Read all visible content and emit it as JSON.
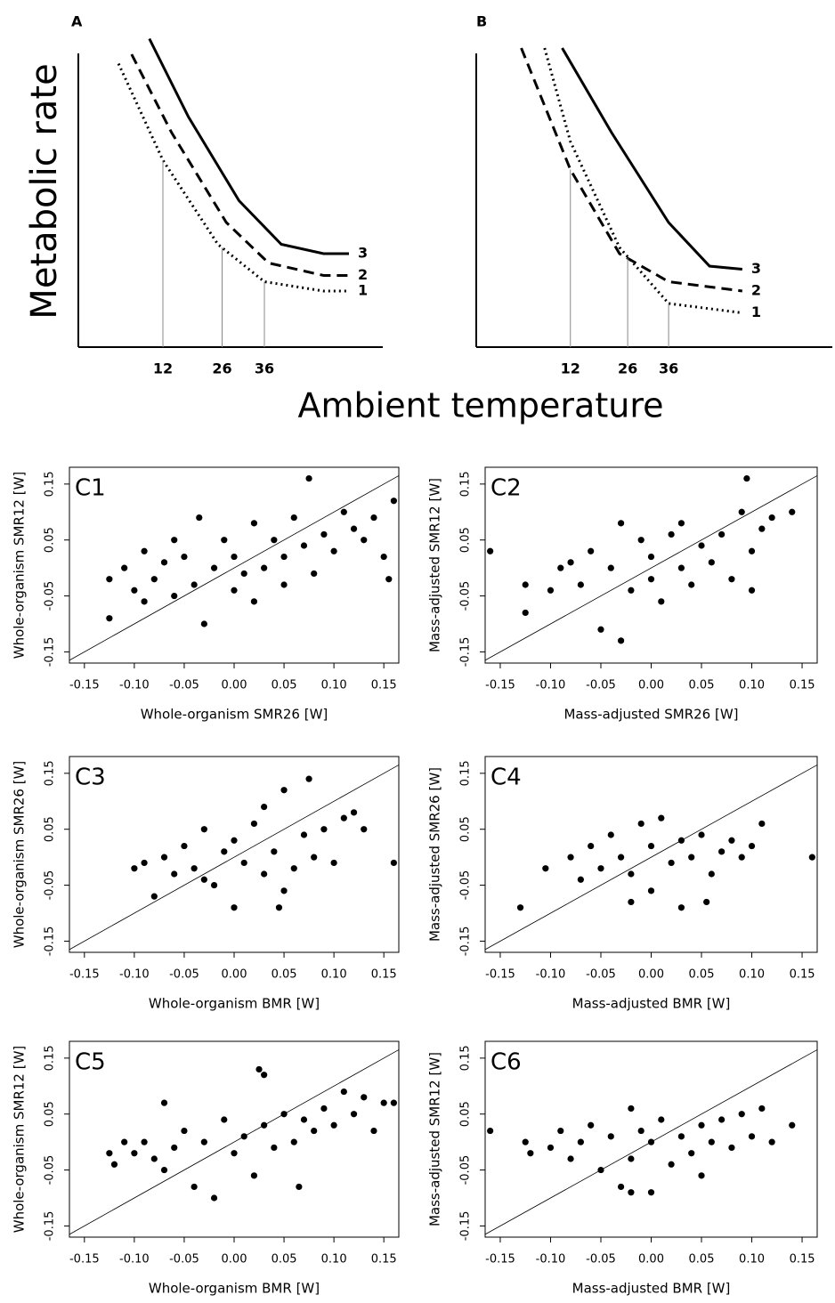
{
  "figure": {
    "ylabel": "Metabolic rate",
    "xlabel": "Ambient temperature"
  },
  "chart_data": [
    {
      "type": "line",
      "title": "A",
      "xlim": [
        -8,
        64
      ],
      "ylim": [
        0,
        100
      ],
      "xticks": [
        12,
        26,
        36
      ],
      "guides": true,
      "series": [
        {
          "name": "1",
          "color": "#000000",
          "dash": "dotted",
          "x": [
            1.5,
            12,
            25,
            36,
            50,
            56
          ],
          "values": [
            91,
            60,
            33,
            21,
            18,
            18
          ]
        },
        {
          "name": "2",
          "color": "#000000",
          "dash": "dashed",
          "x": [
            4.6,
            14,
            27,
            37,
            50,
            56
          ],
          "values": [
            94,
            69,
            40,
            27,
            23,
            23
          ]
        },
        {
          "name": "3",
          "color": "#000000",
          "dash": "solid",
          "x": [
            8.8,
            18,
            30,
            40,
            50,
            56
          ],
          "values": [
            99,
            74,
            47,
            33,
            30,
            30
          ]
        }
      ]
    },
    {
      "type": "line",
      "title": "B",
      "xlim": [
        -11,
        76
      ],
      "ylim": [
        0,
        100
      ],
      "xticks": [
        12,
        26,
        36
      ],
      "guides": true,
      "series": [
        {
          "name": "1",
          "color": "#000000",
          "dash": "dotted",
          "x": [
            5.7,
            12,
            24,
            36,
            54
          ],
          "values": [
            96,
            66,
            32,
            14,
            11
          ]
        },
        {
          "name": "2",
          "color": "#000000",
          "dash": "dashed",
          "x": [
            0,
            12,
            24,
            36,
            54
          ],
          "values": [
            96,
            57,
            30,
            21,
            18
          ]
        },
        {
          "name": "3",
          "color": "#000000",
          "dash": "solid",
          "x": [
            10,
            22,
            36,
            46,
            54
          ],
          "values": [
            96,
            69,
            40,
            26,
            25
          ]
        }
      ]
    },
    {
      "type": "scatter",
      "title": "C1",
      "xlabel": "Whole-organism SMR26 [W]",
      "ylabel": "Whole-organism SMR12 [W]",
      "color": "#000000",
      "identity_line": true,
      "xlim": [
        -0.165,
        0.165
      ],
      "ylim": [
        -0.17,
        0.18
      ],
      "xticks": [
        -0.15,
        {
          "value": -0.1,
          "label": "-0.10"
        },
        -0.05,
        {
          "value": 0,
          "label": "0.00"
        },
        0.05,
        {
          "value": 0.1,
          "label": "0.10"
        },
        0.15
      ],
      "yticks": [
        -0.15,
        -0.05,
        0.05,
        0.15
      ],
      "x": [
        -0.125,
        -0.125,
        -0.11,
        -0.1,
        -0.09,
        -0.08,
        -0.07,
        -0.06,
        -0.05,
        -0.04,
        -0.035,
        -0.03,
        -0.02,
        -0.01,
        0,
        0,
        0.01,
        0.02,
        0.03,
        0.04,
        0.05,
        0.05,
        0.06,
        0.07,
        0.075,
        0.08,
        0.09,
        0.1,
        0.11,
        0.12,
        0.13,
        0.14,
        0.15,
        0.16,
        0.155,
        -0.06,
        0.02,
        -0.09
      ],
      "values": [
        -0.09,
        -0.02,
        0,
        -0.04,
        -0.06,
        -0.02,
        0.01,
        -0.05,
        0.02,
        -0.03,
        0.09,
        -0.1,
        0,
        0.05,
        -0.04,
        0.02,
        -0.01,
        0.08,
        0,
        0.05,
        -0.03,
        0.02,
        0.09,
        0.04,
        0.16,
        -0.01,
        0.06,
        0.03,
        0.1,
        0.07,
        0.05,
        0.09,
        0.02,
        0.12,
        -0.02,
        0.05,
        -0.06,
        0.03
      ]
    },
    {
      "type": "scatter",
      "title": "C2",
      "xlabel": "Mass-adjusted SMR26 [W]",
      "ylabel": "Mass-adjusted SMR12 [W]",
      "color": "#000000",
      "identity_line": true,
      "xlim": [
        -0.165,
        0.165
      ],
      "ylim": [
        -0.17,
        0.18
      ],
      "xticks": [
        -0.15,
        {
          "value": -0.1,
          "label": "-0.10"
        },
        -0.05,
        {
          "value": 0,
          "label": "0.00"
        },
        0.05,
        {
          "value": 0.1,
          "label": "0.10"
        },
        0.15
      ],
      "yticks": [
        -0.15,
        -0.05,
        0.05,
        0.15
      ],
      "x": [
        -0.16,
        -0.125,
        -0.125,
        -0.1,
        -0.09,
        -0.07,
        -0.06,
        -0.05,
        -0.04,
        -0.03,
        -0.03,
        -0.02,
        -0.01,
        0,
        0,
        0.01,
        0.02,
        0.03,
        0.04,
        0.05,
        0.06,
        0.07,
        0.08,
        0.09,
        0.095,
        0.1,
        0.11,
        0.12,
        0.14,
        0.1,
        -0.08,
        0.03
      ],
      "values": [
        0.03,
        -0.03,
        -0.08,
        -0.04,
        0,
        -0.03,
        0.03,
        -0.11,
        0,
        -0.13,
        0.08,
        -0.04,
        0.05,
        -0.02,
        0.02,
        -0.06,
        0.06,
        0,
        -0.03,
        0.04,
        0.01,
        0.06,
        -0.02,
        0.1,
        0.16,
        0.03,
        0.07,
        0.09,
        0.1,
        -0.04,
        0.01,
        0.08
      ]
    },
    {
      "type": "scatter",
      "title": "C3",
      "xlabel": "Whole-organism BMR [W]",
      "ylabel": "Whole-organism SMR26 [W]",
      "color": "#000000",
      "identity_line": true,
      "xlim": [
        -0.165,
        0.165
      ],
      "ylim": [
        -0.17,
        0.18
      ],
      "xticks": [
        -0.15,
        {
          "value": -0.1,
          "label": "-0.10"
        },
        -0.05,
        {
          "value": 0,
          "label": "0.00"
        },
        0.05,
        {
          "value": 0.1,
          "label": "0.10"
        },
        0.15
      ],
      "yticks": [
        -0.15,
        -0.05,
        0.05,
        0.15
      ],
      "x": [
        -0.1,
        -0.09,
        -0.08,
        -0.07,
        -0.06,
        -0.05,
        -0.04,
        -0.03,
        -0.02,
        -0.01,
        0,
        0,
        0.01,
        0.02,
        0.03,
        0.03,
        0.04,
        0.05,
        0.05,
        0.06,
        0.07,
        0.075,
        0.08,
        0.09,
        0.1,
        0.11,
        0.12,
        0.13,
        0.16,
        -0.03,
        0.045
      ],
      "values": [
        -0.02,
        -0.01,
        -0.07,
        0,
        -0.03,
        0.02,
        -0.02,
        0.05,
        -0.05,
        0.01,
        -0.09,
        0.03,
        -0.01,
        0.06,
        0.09,
        -0.03,
        0.01,
        0.12,
        -0.06,
        -0.02,
        0.04,
        0.14,
        0,
        0.05,
        -0.01,
        0.07,
        0.08,
        0.05,
        -0.01,
        -0.04,
        -0.09
      ]
    },
    {
      "type": "scatter",
      "title": "C4",
      "xlabel": "Mass-adjusted BMR [W]",
      "ylabel": "Mass-adjusted SMR26 [W]",
      "color": "#000000",
      "identity_line": true,
      "xlim": [
        -0.165,
        0.165
      ],
      "ylim": [
        -0.17,
        0.18
      ],
      "xticks": [
        -0.15,
        {
          "value": -0.1,
          "label": "-0.10"
        },
        -0.05,
        {
          "value": 0,
          "label": "0.00"
        },
        0.05,
        {
          "value": 0.1,
          "label": "0.10"
        },
        0.15
      ],
      "yticks": [
        -0.15,
        -0.05,
        0.05,
        0.15
      ],
      "x": [
        -0.13,
        -0.105,
        -0.08,
        -0.07,
        -0.06,
        -0.05,
        -0.04,
        -0.03,
        -0.02,
        -0.01,
        0,
        0,
        0.01,
        0.02,
        0.03,
        0.03,
        0.04,
        0.05,
        0.06,
        0.07,
        0.08,
        0.09,
        0.1,
        0.11,
        0.16,
        -0.02,
        0.055
      ],
      "values": [
        -0.09,
        -0.02,
        0,
        -0.04,
        0.02,
        -0.02,
        0.04,
        0,
        -0.03,
        0.06,
        0.02,
        -0.06,
        0.07,
        -0.01,
        0.03,
        -0.09,
        0,
        0.04,
        -0.03,
        0.01,
        0.03,
        0,
        0.02,
        0.06,
        0,
        -0.08,
        -0.08
      ]
    },
    {
      "type": "scatter",
      "title": "C5",
      "xlabel": "Whole-organism BMR [W]",
      "ylabel": "Whole-organism SMR12 [W]",
      "color": "#000000",
      "identity_line": true,
      "xlim": [
        -0.165,
        0.165
      ],
      "ylim": [
        -0.17,
        0.18
      ],
      "xticks": [
        -0.15,
        {
          "value": -0.1,
          "label": "-0.10"
        },
        -0.05,
        {
          "value": 0,
          "label": "0.00"
        },
        0.05,
        {
          "value": 0.1,
          "label": "0.10"
        },
        0.15
      ],
      "yticks": [
        -0.15,
        -0.05,
        0.05,
        0.15
      ],
      "x": [
        -0.125,
        -0.12,
        -0.11,
        -0.1,
        -0.09,
        -0.08,
        -0.07,
        -0.06,
        -0.05,
        -0.04,
        -0.03,
        -0.02,
        -0.01,
        0,
        0.01,
        0.02,
        0.025,
        0.03,
        0.03,
        0.04,
        0.05,
        0.06,
        0.065,
        0.07,
        0.08,
        0.09,
        0.1,
        0.11,
        0.12,
        0.13,
        0.14,
        0.15,
        0.16,
        -0.07
      ],
      "values": [
        -0.02,
        -0.04,
        0,
        -0.02,
        0,
        -0.03,
        0.07,
        -0.01,
        0.02,
        -0.08,
        0,
        -0.1,
        0.04,
        -0.02,
        0.01,
        -0.06,
        0.13,
        0.12,
        0.03,
        -0.01,
        0.05,
        0,
        -0.08,
        0.04,
        0.02,
        0.06,
        0.03,
        0.09,
        0.05,
        0.08,
        0.02,
        0.07,
        0.07,
        -0.05
      ]
    },
    {
      "type": "scatter",
      "title": "C6",
      "xlabel": "Mass-adjusted BMR [W]",
      "ylabel": "Mass-adjusted SMR12 [W]",
      "color": "#000000",
      "identity_line": true,
      "xlim": [
        -0.165,
        0.165
      ],
      "ylim": [
        -0.17,
        0.18
      ],
      "xticks": [
        -0.15,
        {
          "value": -0.1,
          "label": "-0.10"
        },
        -0.05,
        {
          "value": 0,
          "label": "0.00"
        },
        0.05,
        {
          "value": 0.1,
          "label": "0.10"
        },
        0.15
      ],
      "yticks": [
        -0.15,
        -0.05,
        0.05,
        0.15
      ],
      "x": [
        -0.16,
        -0.125,
        -0.12,
        -0.1,
        -0.09,
        -0.08,
        -0.07,
        -0.06,
        -0.05,
        -0.04,
        -0.03,
        -0.02,
        -0.02,
        -0.01,
        0,
        0,
        0.01,
        0.02,
        0.03,
        0.04,
        0.05,
        0.06,
        0.07,
        0.08,
        0.09,
        0.1,
        0.11,
        0.12,
        0.14,
        -0.02,
        0.05
      ],
      "values": [
        0.02,
        0,
        -0.02,
        -0.01,
        0.02,
        -0.03,
        0,
        0.03,
        -0.05,
        0.01,
        -0.08,
        0.06,
        -0.03,
        0.02,
        -0.09,
        0,
        0.04,
        -0.04,
        0.01,
        -0.02,
        0.03,
        0,
        0.04,
        -0.01,
        0.05,
        0.01,
        0.06,
        0,
        0.03,
        -0.09,
        -0.06
      ]
    }
  ]
}
